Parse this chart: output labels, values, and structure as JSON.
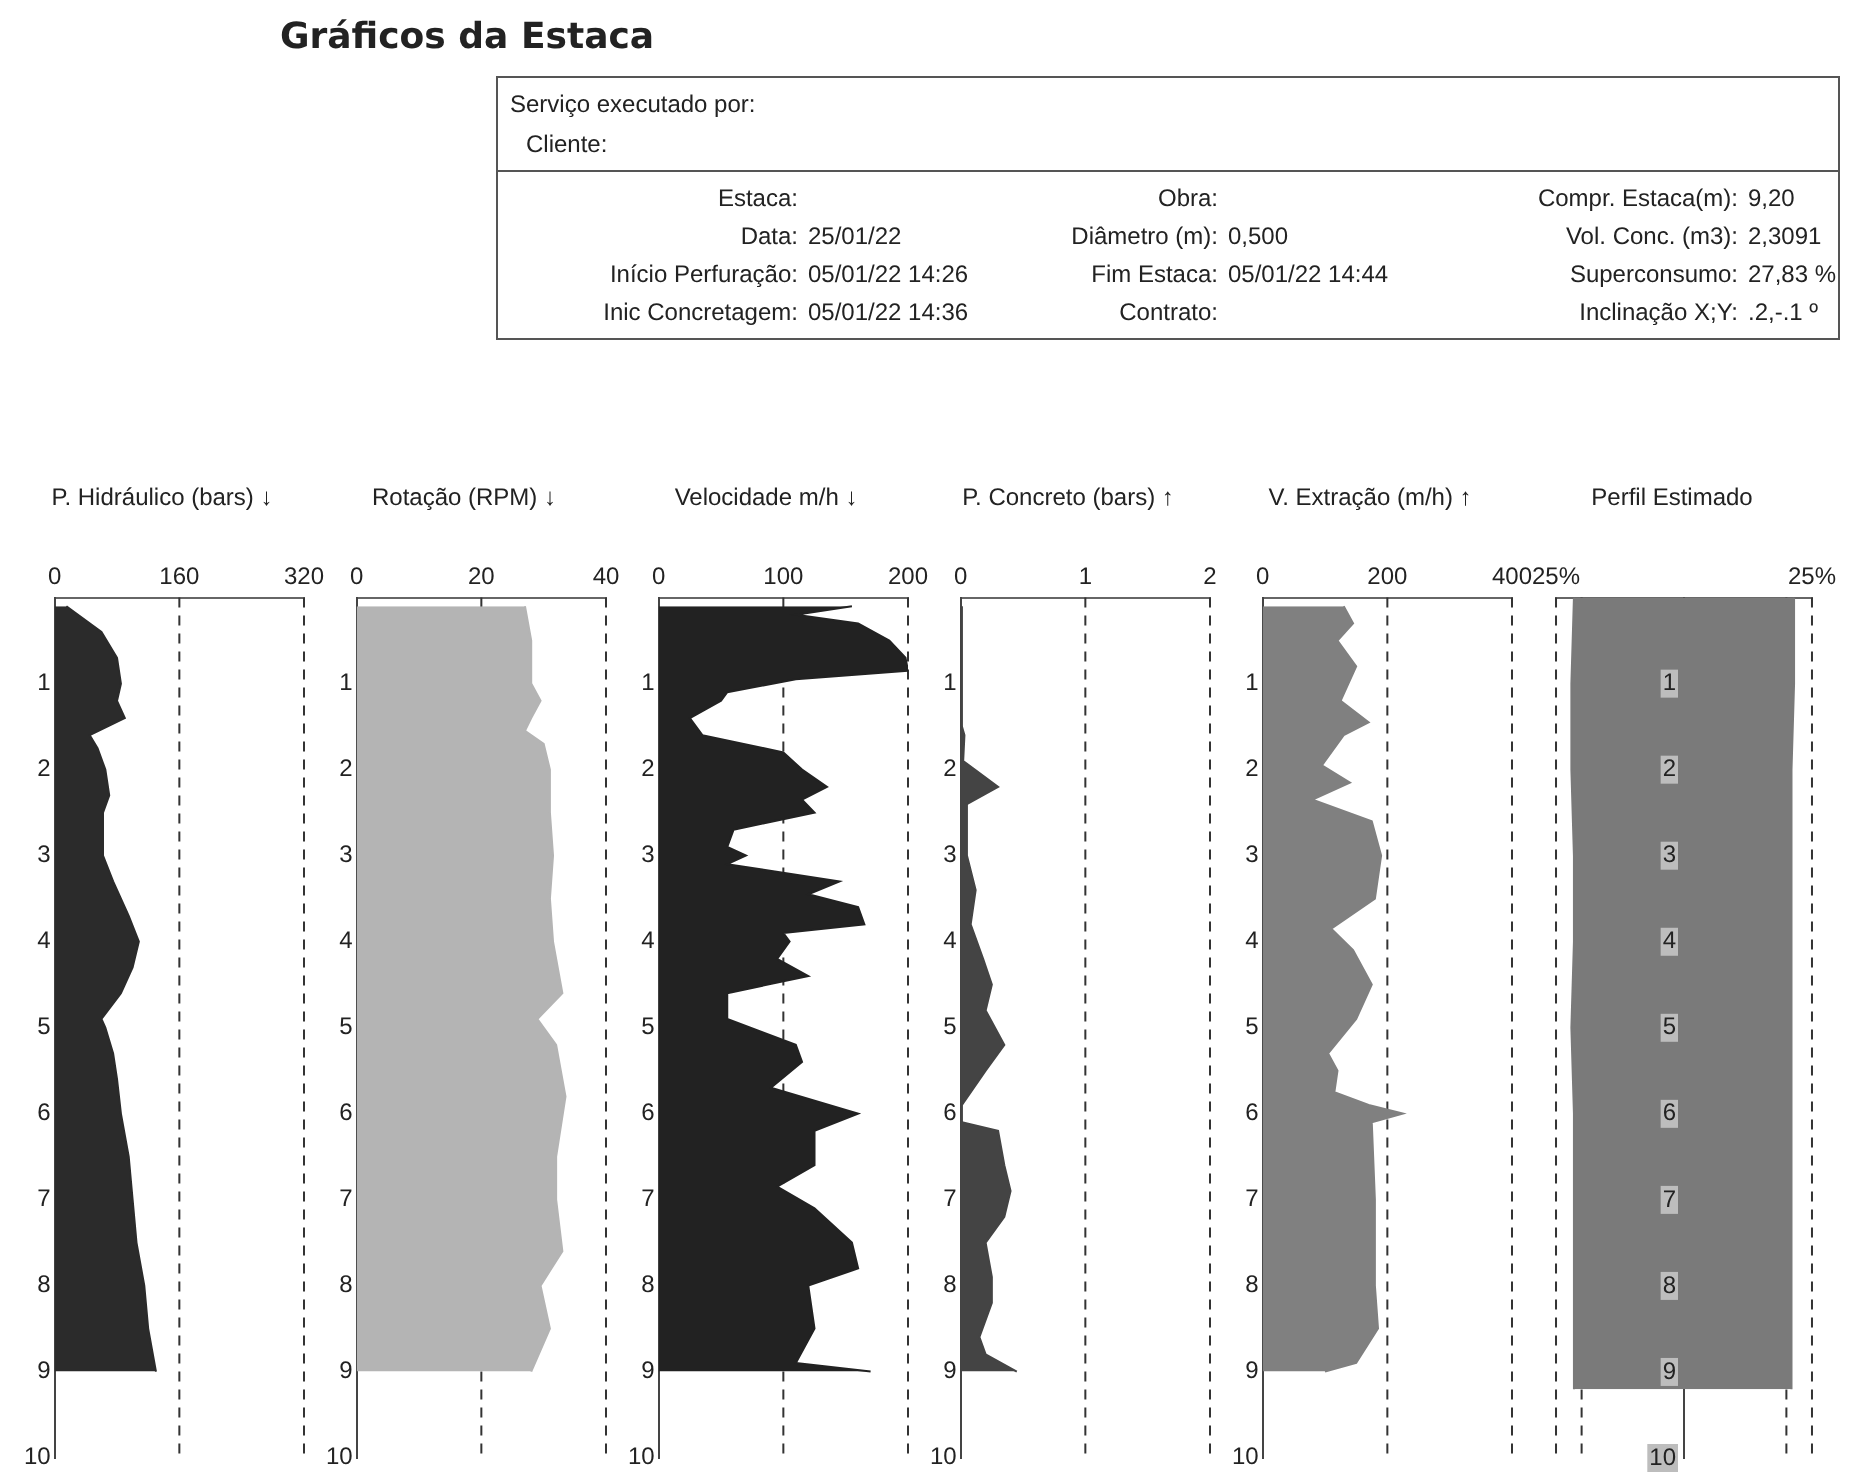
{
  "chart_data": [
    {
      "type": "other",
      "title": "Gráficos da Estaca",
      "annotations": [
        "Serviço executado por:",
        "Cliente:",
        "Estaca:",
        "Obra:",
        "Compr. Estaca(m): 9,20",
        "Data: 25/01/22",
        "Diâmetro (m): 0,500",
        "Vol. Conc. (m3): 2,3091",
        "Início Perfuração: 05/01/22 14:26",
        "Fim Estaca: 05/01/22 14:44",
        "Superconsumo: 27,83 %",
        "Inic Concretagem: 05/01/22 14:36",
        "Contrato:",
        "Inclinação X;Y: .2,-.1 º"
      ]
    },
    {
      "type": "area",
      "title": "P. Hidráulico (bars) ↓",
      "orientation": "horizontal",
      "x": [
        0.1,
        0.4,
        0.7,
        1.0,
        1.2,
        1.4,
        1.6,
        1.75,
        2.0,
        2.3,
        2.5,
        3.0,
        3.3,
        3.7,
        4.0,
        4.3,
        4.6,
        4.9,
        5.0,
        5.3,
        5.6,
        6.0,
        6.5,
        7.0,
        7.5,
        8.0,
        8.5,
        9.0
      ],
      "series": [
        {
          "color": "#2b2b2b",
          "values": [
            15,
            60,
            80,
            85,
            80,
            90,
            45,
            55,
            65,
            70,
            62,
            62,
            75,
            95,
            108,
            100,
            85,
            60,
            65,
            75,
            80,
            85,
            95,
            100,
            105,
            115,
            120,
            130
          ]
        }
      ],
      "xlim": [
        0,
        320
      ],
      "xticks": [
        0,
        160,
        320
      ],
      "ylim": [
        10,
        0
      ],
      "yticks": [
        1,
        2,
        3,
        4,
        5,
        6,
        7,
        8,
        9,
        10
      ],
      "grid": "x"
    },
    {
      "type": "area",
      "title": "Rotação (RPM) ↓",
      "orientation": "horizontal",
      "x": [
        0.1,
        0.5,
        1.0,
        1.2,
        1.4,
        1.55,
        1.7,
        2.0,
        2.5,
        3.0,
        3.5,
        4.0,
        4.6,
        4.9,
        5.2,
        5.8,
        6.5,
        7.0,
        7.6,
        8.0,
        8.5,
        9.0
      ],
      "series": [
        {
          "color": "#b4b4b4",
          "values": [
            27,
            28,
            28,
            29.5,
            28,
            27,
            30,
            31,
            31,
            31.5,
            31,
            31.5,
            33,
            29,
            32,
            33.5,
            32,
            32,
            33,
            29.5,
            31,
            28
          ]
        }
      ],
      "xlim": [
        0,
        40
      ],
      "xticks": [
        0,
        20,
        40
      ],
      "ylim": [
        10,
        0
      ],
      "yticks": [
        1,
        2,
        3,
        4,
        5,
        6,
        7,
        8,
        9,
        10
      ],
      "grid": "x"
    },
    {
      "type": "area",
      "title": "Velocidade m/h ↓",
      "orientation": "horizontal",
      "x": [
        0.1,
        0.2,
        0.3,
        0.5,
        0.7,
        0.85,
        0.95,
        1.1,
        1.2,
        1.4,
        1.6,
        1.8,
        2.0,
        2.2,
        2.35,
        2.5,
        2.7,
        2.9,
        3.0,
        3.1,
        3.3,
        3.45,
        3.6,
        3.8,
        3.9,
        4.0,
        4.2,
        4.4,
        4.6,
        4.9,
        5.2,
        5.4,
        5.7,
        6.0,
        6.2,
        6.6,
        6.85,
        7.1,
        7.5,
        7.8,
        8.0,
        8.5,
        8.9,
        9.0
      ],
      "series": [
        {
          "color": "#222222",
          "values": [
            155,
            110,
            160,
            185,
            198,
            200,
            110,
            55,
            50,
            25,
            35,
            100,
            115,
            135,
            115,
            125,
            60,
            55,
            70,
            55,
            145,
            120,
            160,
            165,
            100,
            105,
            95,
            120,
            55,
            55,
            110,
            115,
            90,
            160,
            125,
            125,
            95,
            125,
            155,
            160,
            120,
            125,
            110,
            170
          ]
        }
      ],
      "xlim": [
        0,
        200
      ],
      "xticks": [
        0,
        100,
        200
      ],
      "ylim": [
        10,
        0
      ],
      "yticks": [
        1,
        2,
        3,
        4,
        5,
        6,
        7,
        8,
        9,
        10
      ],
      "grid": "x"
    },
    {
      "type": "area",
      "title": "P. Concreto (bars) ↑",
      "orientation": "horizontal",
      "x": [
        0.1,
        1.5,
        1.6,
        1.9,
        2.2,
        2.4,
        3.0,
        3.4,
        3.8,
        4.2,
        4.5,
        4.8,
        5.2,
        5.5,
        5.9,
        6.1,
        6.2,
        6.6,
        6.9,
        7.2,
        7.5,
        7.9,
        8.2,
        8.6,
        8.8,
        9.0
      ],
      "series": [
        {
          "color": "#444444",
          "values": [
            0.01,
            0.01,
            0.03,
            0.02,
            0.3,
            0.05,
            0.05,
            0.12,
            0.08,
            0.18,
            0.25,
            0.2,
            0.35,
            0.2,
            0.01,
            0.01,
            0.3,
            0.35,
            0.4,
            0.35,
            0.2,
            0.25,
            0.25,
            0.15,
            0.2,
            0.45
          ]
        }
      ],
      "xlim": [
        0,
        2
      ],
      "xticks": [
        0,
        1,
        2
      ],
      "ylim": [
        10,
        0
      ],
      "yticks": [
        1,
        2,
        3,
        4,
        5,
        6,
        7,
        8,
        9,
        10
      ],
      "grid": "x"
    },
    {
      "type": "area",
      "title": "V. Extração (m/h) ↑",
      "orientation": "horizontal",
      "x": [
        0.1,
        0.3,
        0.5,
        0.8,
        1.2,
        1.45,
        1.6,
        1.95,
        2.15,
        2.35,
        2.6,
        3.0,
        3.5,
        3.85,
        4.1,
        4.5,
        4.9,
        5.3,
        5.5,
        5.75,
        5.9,
        6.0,
        6.1,
        7.0,
        8.0,
        8.5,
        8.9,
        9.0
      ],
      "series": [
        {
          "color": "#808080",
          "values": [
            130,
            145,
            120,
            150,
            125,
            170,
            130,
            95,
            140,
            80,
            175,
            190,
            180,
            110,
            145,
            175,
            150,
            105,
            120,
            115,
            170,
            225,
            175,
            180,
            180,
            185,
            150,
            100
          ]
        }
      ],
      "xlim": [
        0,
        400
      ],
      "xticks": [
        0,
        200,
        400
      ],
      "ylim": [
        10,
        0
      ],
      "yticks": [
        1,
        2,
        3,
        4,
        5,
        6,
        7,
        8,
        9,
        10
      ],
      "grid": "x"
    },
    {
      "type": "area",
      "title": "Perfil Estimado",
      "orientation": "horizontal",
      "x": [
        0,
        1,
        2,
        3,
        4,
        5,
        6,
        7,
        8,
        9,
        9.2
      ],
      "series": [
        {
          "color": "#7a7a7a",
          "values": [
            -21.5,
            -22,
            -22,
            -21.5,
            -21.5,
            -22,
            -21.5,
            -21.5,
            -21.5,
            -21.5,
            -21.5
          ]
        },
        {
          "color": "#7a7a7a",
          "values": [
            21.5,
            21.5,
            21,
            21,
            21,
            21,
            21,
            21,
            21,
            21,
            21
          ]
        }
      ],
      "xlim": [
        -25,
        25
      ],
      "xticks": [
        {
          "value": -25,
          "label": "25%"
        },
        {
          "value": -20,
          "label": null
        },
        {
          "value": 20,
          "label": null
        },
        {
          "value": 25,
          "label": "25%"
        }
      ],
      "ylim": [
        10,
        0
      ],
      "yticks": [
        1,
        2,
        3,
        4,
        5,
        6,
        7,
        8,
        9,
        10
      ],
      "grid": "x"
    }
  ]
}
